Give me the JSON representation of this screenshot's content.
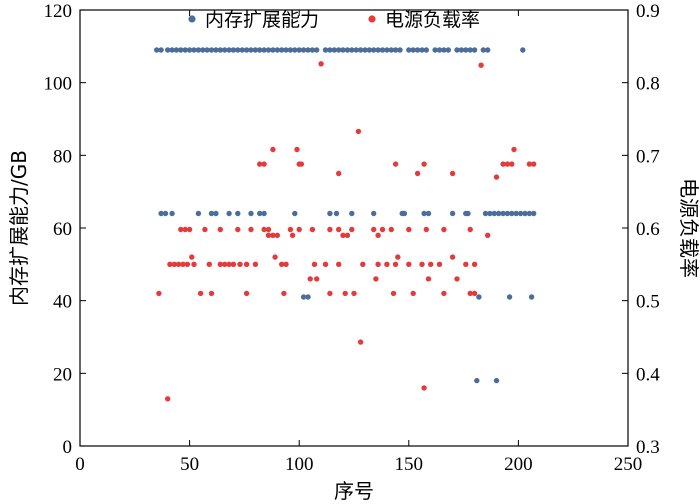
{
  "chart_data": {
    "type": "scatter",
    "xlabel": "序号",
    "ylabel_left": "内存扩展能力/GB",
    "ylabel_right": "电源负载率",
    "xlim": [
      0,
      250
    ],
    "ylim_left": [
      0,
      120
    ],
    "ylim_right": [
      0.3,
      0.9
    ],
    "xticks": [
      0,
      50,
      100,
      150,
      200,
      250
    ],
    "yticks_left": [
      0,
      20,
      40,
      60,
      80,
      100,
      120
    ],
    "yticks_right": [
      0.3,
      0.4,
      0.5,
      0.6,
      0.7,
      0.8,
      0.9
    ],
    "ytick_labels_right": [
      "0.3",
      "0.4",
      "0.5",
      "0.6",
      "0.7",
      "0.8",
      "0.9"
    ],
    "legend_position": "top-center",
    "grid": false,
    "colors": {
      "memory": "#4a6d9c",
      "power": "#e53a3a"
    },
    "series": [
      {
        "name": "内存扩展能力",
        "axis": "left",
        "points": [
          [
            35,
            109
          ],
          [
            37,
            109
          ],
          [
            40,
            109
          ],
          [
            42,
            109
          ],
          [
            44,
            109
          ],
          [
            46,
            109
          ],
          [
            48,
            109
          ],
          [
            50,
            109
          ],
          [
            52,
            109
          ],
          [
            54,
            109
          ],
          [
            56,
            109
          ],
          [
            58,
            109
          ],
          [
            60,
            109
          ],
          [
            62,
            109
          ],
          [
            64,
            109
          ],
          [
            66,
            109
          ],
          [
            68,
            109
          ],
          [
            70,
            109
          ],
          [
            72,
            109
          ],
          [
            74,
            109
          ],
          [
            76,
            109
          ],
          [
            78,
            109
          ],
          [
            80,
            109
          ],
          [
            82,
            109
          ],
          [
            84,
            109
          ],
          [
            86,
            109
          ],
          [
            88,
            109
          ],
          [
            90,
            109
          ],
          [
            92,
            109
          ],
          [
            94,
            109
          ],
          [
            96,
            109
          ],
          [
            98,
            109
          ],
          [
            100,
            109
          ],
          [
            102,
            109
          ],
          [
            104,
            109
          ],
          [
            106,
            109
          ],
          [
            108,
            109
          ],
          [
            112,
            109
          ],
          [
            114,
            109
          ],
          [
            116,
            109
          ],
          [
            118,
            109
          ],
          [
            120,
            109
          ],
          [
            122,
            109
          ],
          [
            124,
            109
          ],
          [
            126,
            109
          ],
          [
            128,
            109
          ],
          [
            130,
            109
          ],
          [
            132,
            109
          ],
          [
            134,
            109
          ],
          [
            136,
            109
          ],
          [
            138,
            109
          ],
          [
            140,
            109
          ],
          [
            142,
            109
          ],
          [
            144,
            109
          ],
          [
            146,
            109
          ],
          [
            150,
            109
          ],
          [
            152,
            109
          ],
          [
            154,
            109
          ],
          [
            156,
            109
          ],
          [
            158,
            109
          ],
          [
            162,
            109
          ],
          [
            164,
            109
          ],
          [
            166,
            109
          ],
          [
            168,
            109
          ],
          [
            172,
            109
          ],
          [
            174,
            109
          ],
          [
            176,
            109
          ],
          [
            178,
            109
          ],
          [
            180,
            109
          ],
          [
            184,
            109
          ],
          [
            186,
            109
          ],
          [
            202,
            109
          ],
          [
            37,
            64
          ],
          [
            39,
            64
          ],
          [
            42,
            64
          ],
          [
            54,
            64
          ],
          [
            60,
            64
          ],
          [
            62,
            64
          ],
          [
            68,
            64
          ],
          [
            72,
            64
          ],
          [
            78,
            64
          ],
          [
            82,
            64
          ],
          [
            84,
            64
          ],
          [
            98,
            64
          ],
          [
            114,
            64
          ],
          [
            117,
            64
          ],
          [
            124,
            64
          ],
          [
            134,
            64
          ],
          [
            147,
            64
          ],
          [
            148,
            64
          ],
          [
            157,
            64
          ],
          [
            159,
            64
          ],
          [
            170,
            64
          ],
          [
            176,
            64
          ],
          [
            177,
            64
          ],
          [
            185,
            64
          ],
          [
            187,
            64
          ],
          [
            189,
            64
          ],
          [
            191,
            64
          ],
          [
            193,
            64
          ],
          [
            195,
            64
          ],
          [
            197,
            64
          ],
          [
            199,
            64
          ],
          [
            201,
            64
          ],
          [
            203,
            64
          ],
          [
            205,
            64
          ],
          [
            207,
            64
          ],
          [
            102,
            41
          ],
          [
            104,
            41
          ],
          [
            182,
            41
          ],
          [
            196,
            41
          ],
          [
            206,
            41
          ],
          [
            181,
            18
          ],
          [
            190,
            18
          ]
        ]
      },
      {
        "name": "电源负载率",
        "axis": "right",
        "points": [
          [
            110,
            0.826
          ],
          [
            183,
            0.824
          ],
          [
            127,
            0.733
          ],
          [
            88,
            0.708
          ],
          [
            99,
            0.708
          ],
          [
            198,
            0.708
          ],
          [
            82,
            0.688
          ],
          [
            84,
            0.688
          ],
          [
            100,
            0.688
          ],
          [
            101,
            0.688
          ],
          [
            144,
            0.688
          ],
          [
            157,
            0.688
          ],
          [
            193,
            0.688
          ],
          [
            195,
            0.688
          ],
          [
            197,
            0.688
          ],
          [
            205,
            0.688
          ],
          [
            207,
            0.688
          ],
          [
            118,
            0.675
          ],
          [
            154,
            0.675
          ],
          [
            170,
            0.675
          ],
          [
            190,
            0.67
          ],
          [
            46,
            0.598
          ],
          [
            48,
            0.598
          ],
          [
            50,
            0.598
          ],
          [
            57,
            0.598
          ],
          [
            64,
            0.598
          ],
          [
            72,
            0.598
          ],
          [
            78,
            0.598
          ],
          [
            84,
            0.598
          ],
          [
            86,
            0.598
          ],
          [
            96,
            0.598
          ],
          [
            100,
            0.598
          ],
          [
            106,
            0.598
          ],
          [
            114,
            0.598
          ],
          [
            118,
            0.598
          ],
          [
            124,
            0.598
          ],
          [
            134,
            0.598
          ],
          [
            138,
            0.598
          ],
          [
            142,
            0.598
          ],
          [
            150,
            0.598
          ],
          [
            158,
            0.598
          ],
          [
            166,
            0.598
          ],
          [
            178,
            0.598
          ],
          [
            186,
            0.59
          ],
          [
            86,
            0.59
          ],
          [
            88,
            0.59
          ],
          [
            90,
            0.59
          ],
          [
            97,
            0.59
          ],
          [
            120,
            0.59
          ],
          [
            122,
            0.59
          ],
          [
            136,
            0.59
          ],
          [
            41,
            0.55
          ],
          [
            43,
            0.55
          ],
          [
            45,
            0.55
          ],
          [
            47,
            0.55
          ],
          [
            49,
            0.55
          ],
          [
            52,
            0.55
          ],
          [
            59,
            0.55
          ],
          [
            64,
            0.55
          ],
          [
            66,
            0.55
          ],
          [
            68,
            0.55
          ],
          [
            70,
            0.55
          ],
          [
            73,
            0.55
          ],
          [
            76,
            0.55
          ],
          [
            80,
            0.55
          ],
          [
            92,
            0.55
          ],
          [
            94,
            0.55
          ],
          [
            107,
            0.55
          ],
          [
            112,
            0.55
          ],
          [
            118,
            0.55
          ],
          [
            129,
            0.55
          ],
          [
            136,
            0.55
          ],
          [
            140,
            0.55
          ],
          [
            144,
            0.55
          ],
          [
            150,
            0.55
          ],
          [
            156,
            0.55
          ],
          [
            160,
            0.55
          ],
          [
            164,
            0.55
          ],
          [
            176,
            0.55
          ],
          [
            180,
            0.55
          ],
          [
            51,
            0.56
          ],
          [
            89,
            0.56
          ],
          [
            145,
            0.56
          ],
          [
            170,
            0.56
          ],
          [
            105,
            0.53
          ],
          [
            108,
            0.53
          ],
          [
            135,
            0.53
          ],
          [
            159,
            0.53
          ],
          [
            172,
            0.53
          ],
          [
            36,
            0.51
          ],
          [
            55,
            0.51
          ],
          [
            60,
            0.51
          ],
          [
            76,
            0.51
          ],
          [
            93,
            0.51
          ],
          [
            114,
            0.51
          ],
          [
            121,
            0.51
          ],
          [
            125,
            0.51
          ],
          [
            143,
            0.51
          ],
          [
            152,
            0.51
          ],
          [
            166,
            0.51
          ],
          [
            178,
            0.51
          ],
          [
            180,
            0.51
          ],
          [
            128,
            0.443
          ],
          [
            157,
            0.38
          ],
          [
            40,
            0.365
          ]
        ]
      }
    ]
  }
}
